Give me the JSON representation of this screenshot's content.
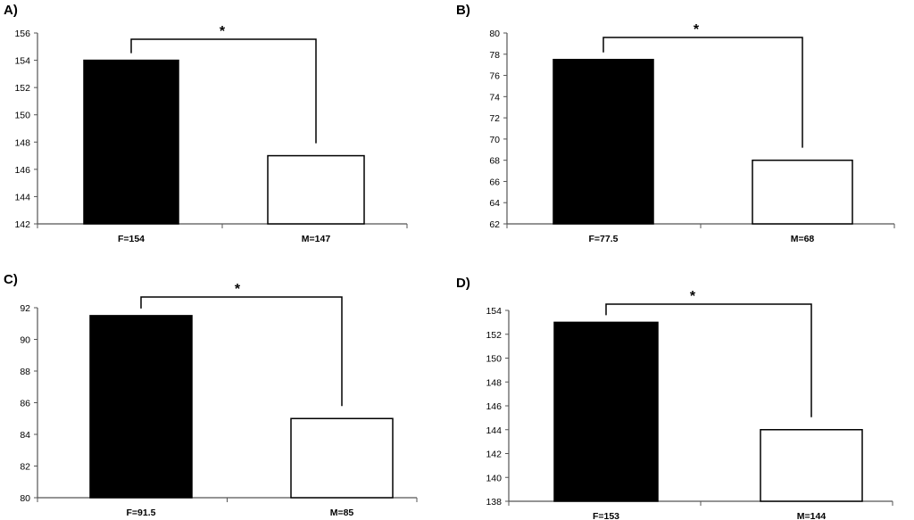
{
  "chart_data": [
    {
      "type": "bar",
      "panel": "A)",
      "categories": [
        "F=154",
        "M=147"
      ],
      "values": [
        154,
        147
      ],
      "fill_colors": [
        "#000000",
        "#ffffff"
      ],
      "ylim": [
        142,
        156
      ],
      "yticks": [
        "142",
        "144",
        "146",
        "148",
        "150",
        "152",
        "154",
        "156"
      ],
      "significance": "*",
      "grid": false
    },
    {
      "type": "bar",
      "panel": "B)",
      "categories": [
        "F=77.5",
        "M=68"
      ],
      "values": [
        77.5,
        68
      ],
      "fill_colors": [
        "#000000",
        "#ffffff"
      ],
      "ylim": [
        62,
        80
      ],
      "yticks": [
        "62",
        "64",
        "66",
        "68",
        "70",
        "72",
        "74",
        "76",
        "78",
        "80"
      ],
      "significance": "*",
      "grid": false
    },
    {
      "type": "bar",
      "panel": "C)",
      "categories": [
        "F=91.5",
        "M=85"
      ],
      "values": [
        91.5,
        85
      ],
      "fill_colors": [
        "#000000",
        "#ffffff"
      ],
      "ylim": [
        80,
        92
      ],
      "yticks": [
        "80",
        "82",
        "84",
        "86",
        "88",
        "90",
        "92"
      ],
      "significance": "*",
      "grid": false
    },
    {
      "type": "bar",
      "panel": "D)",
      "categories": [
        "F=153",
        "M=144"
      ],
      "values": [
        153,
        144
      ],
      "fill_colors": [
        "#000000",
        "#ffffff"
      ],
      "ylim": [
        138,
        154
      ],
      "yticks": [
        "138",
        "140",
        "142",
        "144",
        "146",
        "148",
        "150",
        "152",
        "154"
      ],
      "significance": "*",
      "grid": false
    }
  ]
}
